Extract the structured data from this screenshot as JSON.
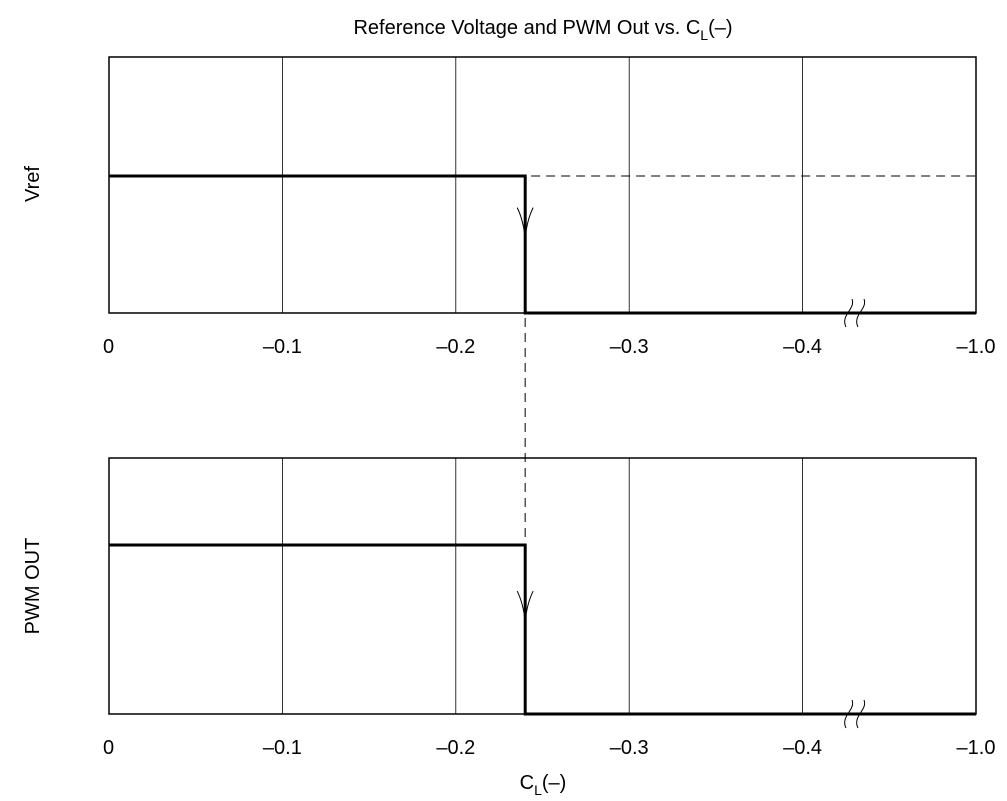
{
  "chart_data": {
    "type": "line",
    "title": {
      "main": "Reference Voltage and PWM Out vs. C",
      "sub": "L",
      "tail": "(–)"
    },
    "xlabel": {
      "main": "C",
      "sub": "L",
      "tail": "(–)"
    },
    "x_ticks": [
      {
        "label": "0",
        "value": 0
      },
      {
        "label": "–0.1",
        "value": -0.1
      },
      {
        "label": "–0.2",
        "value": -0.2
      },
      {
        "label": "–0.3",
        "value": -0.3
      },
      {
        "label": "–0.4",
        "value": -0.4
      },
      {
        "label": "–1.0",
        "value": -1.0
      }
    ],
    "x_axis_break": {
      "between": [
        -0.4,
        -1.0
      ]
    },
    "transition_x": -0.24,
    "panels": [
      {
        "ylabel": "Vref",
        "series": [
          {
            "x": [
              0,
              -0.24,
              -0.24,
              -1.0
            ],
            "y": [
              1,
              1,
              0,
              0
            ]
          }
        ],
        "dashed_continuation": {
          "x": [
            -0.24,
            -1.0
          ],
          "y": 1
        }
      },
      {
        "ylabel": "PWM OUT",
        "series": [
          {
            "x": [
              0,
              -0.24,
              -0.24,
              -1.0
            ],
            "y": [
              1,
              1,
              0,
              0
            ]
          }
        ]
      }
    ]
  }
}
